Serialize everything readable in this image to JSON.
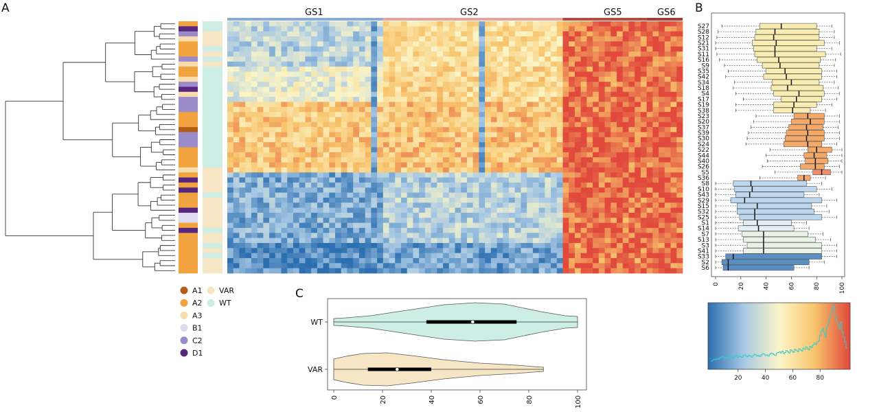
{
  "panels": {
    "a": "A",
    "b": "B",
    "c": "C"
  },
  "heatmap": {
    "group_labels": [
      "GS1",
      "GS2",
      "GS5",
      "GS6"
    ],
    "group_colors": [
      "#8aaad6",
      "#e6a29c",
      "#b24b3c",
      "#a33b32"
    ],
    "legend": [
      {
        "label": "A1",
        "color": "#b35f1a"
      },
      {
        "label": "A2",
        "color": "#f0a33f"
      },
      {
        "label": "A3",
        "color": "#f7dcae"
      },
      {
        "label": "B1",
        "color": "#dcdcee"
      },
      {
        "label": "C2",
        "color": "#9b8cc9"
      },
      {
        "label": "D1",
        "color": "#57267f"
      },
      {
        "label": "VAR",
        "color": "#f6e6c5"
      },
      {
        "label": "WT",
        "color": "#cdeee4"
      }
    ]
  },
  "chart_data": [
    {
      "type": "heatmap",
      "title": "",
      "columns_groups": [
        "GS1",
        "GS2",
        "GS5",
        "GS6"
      ],
      "color_scale": [
        "#2c6fb0",
        "#a7c8e4",
        "#fbf6c8",
        "#f8c46c",
        "#e0493c"
      ],
      "rows": 50,
      "row_blocks": [
        {
          "rows": "1-9",
          "pattern": "GS1 light blue/cream, GS2 warm, GS5/GS6 red"
        },
        {
          "rows": "10-16",
          "pattern": "GS1 cream/yellow, GS2 warm, GS5/GS6 red"
        },
        {
          "rows": "17-30",
          "pattern": "GS1 orange/red, GS2 orange/red, GS5/GS6 red"
        },
        {
          "rows": "31-44",
          "pattern": "GS1 blue, GS2 blue/cream, GS5/GS6 red"
        },
        {
          "rows": "45-49",
          "pattern": "GS1 dark blue, GS2 blue, GS5/GS6 red"
        }
      ]
    },
    {
      "type": "box",
      "orientation": "horizontal",
      "xlim": [
        0,
        100
      ],
      "xticks": [
        0,
        20,
        40,
        60,
        80,
        100
      ],
      "categories": [
        "S27",
        "S28",
        "S12",
        "S21",
        "S31",
        "S11",
        "S16",
        "S9",
        "S35",
        "S42",
        "S34",
        "S18",
        "S4",
        "S17",
        "S19",
        "S38",
        "S23",
        "S20",
        "S37",
        "S39",
        "S30",
        "S24",
        "S22",
        "S44",
        "S40",
        "S26",
        "S5",
        "S36",
        "S8",
        "S10",
        "S43",
        "S29",
        "S15",
        "S32",
        "S25",
        "S1",
        "S14",
        "S7",
        "S13",
        "S3",
        "S41",
        "S33",
        "S2",
        "S6"
      ],
      "boxes": [
        {
          "q1": 35,
          "median": 52,
          "q3": 80,
          "color": "#f9ecb0"
        },
        {
          "q1": 32,
          "median": 47,
          "q3": 82,
          "color": "#f9ecb0"
        },
        {
          "q1": 31,
          "median": 46,
          "q3": 82,
          "color": "#f9ecb0"
        },
        {
          "q1": 29,
          "median": 48,
          "q3": 86,
          "color": "#f9ecb0"
        },
        {
          "q1": 30,
          "median": 47,
          "q3": 80,
          "color": "#f9ecb0"
        },
        {
          "q1": 31,
          "median": 47,
          "q3": 87,
          "color": "#f9ecb0"
        },
        {
          "q1": 33,
          "median": 50,
          "q3": 83,
          "color": "#f9ecb0"
        },
        {
          "q1": 37,
          "median": 51,
          "q3": 82,
          "color": "#f9ecb0"
        },
        {
          "q1": 40,
          "median": 55,
          "q3": 84,
          "color": "#f9ecb0"
        },
        {
          "q1": 38,
          "median": 56,
          "q3": 84,
          "color": "#f9ecb0"
        },
        {
          "q1": 45,
          "median": 60,
          "q3": 82,
          "color": "#f9ecb0"
        },
        {
          "q1": 44,
          "median": 57,
          "q3": 85,
          "color": "#f9ecb0"
        },
        {
          "q1": 46,
          "median": 66,
          "q3": 86,
          "color": "#f9ecb0"
        },
        {
          "q1": 52,
          "median": 64,
          "q3": 84,
          "color": "#f9ecb0"
        },
        {
          "q1": 46,
          "median": 62,
          "q3": 80,
          "color": "#f9ecb0"
        },
        {
          "q1": 46,
          "median": 61,
          "q3": 75,
          "color": "#f9ecb0"
        },
        {
          "q1": 62,
          "median": 73,
          "q3": 86,
          "color": "#f4a968"
        },
        {
          "q1": 60,
          "median": 75,
          "q3": 86,
          "color": "#f4a968"
        },
        {
          "q1": 58,
          "median": 72,
          "q3": 85,
          "color": "#f4a968"
        },
        {
          "q1": 56,
          "median": 73,
          "q3": 86,
          "color": "#f4a968"
        },
        {
          "q1": 55,
          "median": 72,
          "q3": 86,
          "color": "#f4a968"
        },
        {
          "q1": 54,
          "median": 73,
          "q3": 84,
          "color": "#f4a968"
        },
        {
          "q1": 73,
          "median": 80,
          "q3": 92,
          "color": "#f4a968"
        },
        {
          "q1": 70,
          "median": 78,
          "q3": 88,
          "color": "#f4a968"
        },
        {
          "q1": 71,
          "median": 79,
          "q3": 89,
          "color": "#f4a968"
        },
        {
          "q1": 67,
          "median": 79,
          "q3": 86,
          "color": "#f4a968"
        },
        {
          "q1": 77,
          "median": 84,
          "q3": 91,
          "color": "#ee8c6e"
        },
        {
          "q1": 65,
          "median": 70,
          "q3": 75,
          "color": "#f4a968"
        },
        {
          "q1": 14,
          "median": 28,
          "q3": 72,
          "color": "#bcd7ee"
        },
        {
          "q1": 15,
          "median": 29,
          "q3": 80,
          "color": "#bcd7ee"
        },
        {
          "q1": 16,
          "median": 27,
          "q3": 70,
          "color": "#bcd7ee"
        },
        {
          "q1": 12,
          "median": 23,
          "q3": 84,
          "color": "#bcd7ee"
        },
        {
          "q1": 17,
          "median": 33,
          "q3": 76,
          "color": "#bcd7ee"
        },
        {
          "q1": 17,
          "median": 31,
          "q3": 78,
          "color": "#bcd7ee"
        },
        {
          "q1": 19,
          "median": 31,
          "q3": 84,
          "color": "#bcd7ee"
        },
        {
          "q1": 22,
          "median": 33,
          "q3": 60,
          "color": "#e3eff4"
        },
        {
          "q1": 18,
          "median": 34,
          "q3": 62,
          "color": "#e3eff4"
        },
        {
          "q1": 21,
          "median": 38,
          "q3": 73,
          "color": "#e8f3e6"
        },
        {
          "q1": 22,
          "median": 38,
          "q3": 79,
          "color": "#e8f3e6"
        },
        {
          "q1": 25,
          "median": 38,
          "q3": 84,
          "color": "#e8f3e6"
        },
        {
          "q1": 22,
          "median": 38,
          "q3": 84,
          "color": "#e8f3e6"
        },
        {
          "q1": 8,
          "median": 14,
          "q3": 84,
          "color": "#5a8fc4"
        },
        {
          "q1": 5,
          "median": 10,
          "q3": 74,
          "color": "#5a8fc4"
        },
        {
          "q1": 6,
          "median": 10,
          "q3": 62,
          "color": "#5a8fc4"
        }
      ]
    },
    {
      "type": "histogram",
      "xticks": [
        20,
        40,
        60,
        80
      ],
      "xlim": [
        0,
        100
      ],
      "values": [
        9,
        10,
        12,
        11,
        13,
        12,
        14,
        15,
        16,
        14,
        15,
        13,
        15,
        18,
        16,
        17,
        14,
        16,
        18,
        15,
        17,
        16,
        15,
        18,
        19,
        17,
        16,
        18,
        17,
        15,
        18,
        20,
        19,
        17,
        18,
        16,
        19,
        21,
        20,
        18,
        19,
        17,
        20,
        22,
        21,
        19,
        18,
        22,
        23,
        24,
        22,
        25,
        21,
        23,
        26,
        24,
        22,
        27,
        25,
        23,
        28,
        26,
        24,
        29,
        27,
        25,
        30,
        28,
        32,
        29,
        27,
        33,
        31,
        35,
        38,
        36,
        40,
        42,
        50,
        58,
        62,
        55,
        48,
        64,
        70,
        78,
        88,
        94,
        99,
        82,
        74,
        68,
        60,
        72,
        56,
        48,
        40,
        30
      ]
    },
    {
      "type": "violin",
      "xlim": [
        0,
        100
      ],
      "xticks": [
        0,
        20,
        40,
        60,
        80,
        100
      ],
      "categories": [
        "WT",
        "VAR"
      ],
      "series": [
        {
          "name": "WT",
          "min": 0,
          "q1": 38,
          "median": 57,
          "q3": 75,
          "max": 100,
          "color": "#cdeee4"
        },
        {
          "name": "VAR",
          "min": 0,
          "q1": 14,
          "median": 26,
          "q3": 40,
          "max": 86,
          "color": "#f6e6c5"
        }
      ]
    }
  ]
}
